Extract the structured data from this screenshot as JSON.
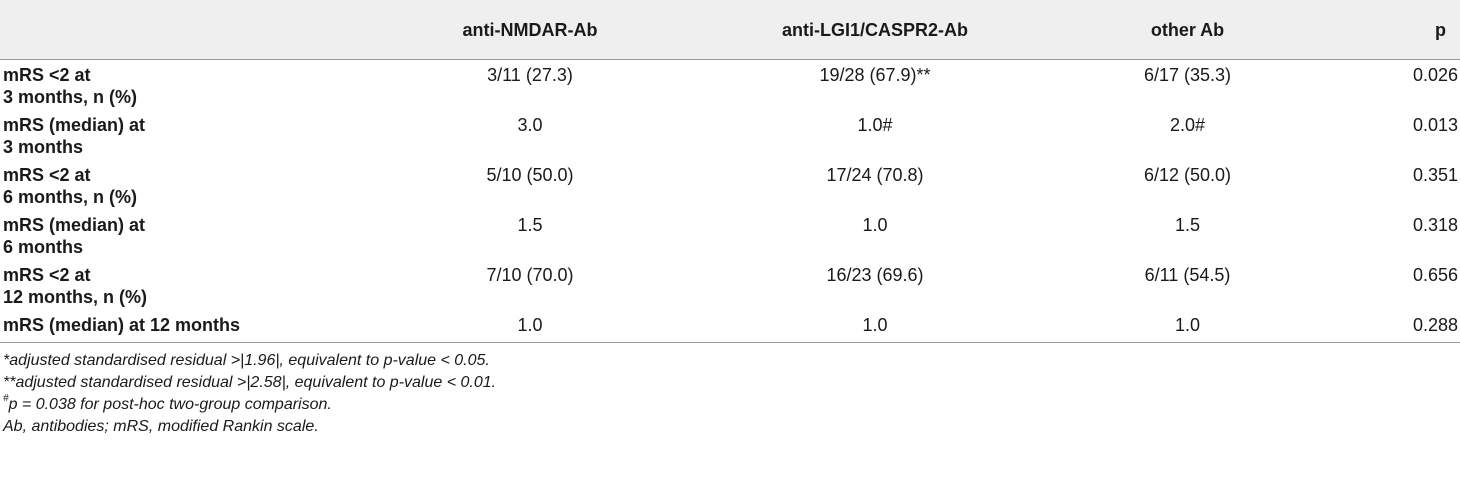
{
  "table": {
    "headers": [
      "",
      "anti-NMDAR-Ab",
      "anti-LGI1/CASPR2-Ab",
      "other Ab",
      "p"
    ],
    "rows": [
      {
        "label_line1": "mRS <2 at",
        "label_line2": "3 months, n (%)",
        "nmdar": "3/11 (27.3)",
        "lgi1": "19/28 (67.9)**",
        "other": "6/17 (35.3)",
        "p": "0.026"
      },
      {
        "label_line1": "mRS (median) at",
        "label_line2": "3 months",
        "nmdar": "3.0",
        "lgi1": "1.0#",
        "other": "2.0#",
        "p": "0.013"
      },
      {
        "label_line1": "mRS <2 at",
        "label_line2": "6 months, n (%)",
        "nmdar": "5/10 (50.0)",
        "lgi1": "17/24 (70.8)",
        "other": "6/12 (50.0)",
        "p": "0.351"
      },
      {
        "label_line1": "mRS (median) at",
        "label_line2": "6 months",
        "nmdar": "1.5",
        "lgi1": "1.0",
        "other": "1.5",
        "p": "0.318"
      },
      {
        "label_line1": "mRS <2 at",
        "label_line2": "12 months, n (%)",
        "nmdar": "7/10 (70.0)",
        "lgi1": "16/23 (69.6)",
        "other": "6/11 (54.5)",
        "p": "0.656"
      },
      {
        "label_line1": "mRS (median) at 12 months",
        "label_line2": "",
        "nmdar": "1.0",
        "lgi1": "1.0",
        "other": "1.0",
        "p": "0.288"
      }
    ]
  },
  "footnotes": {
    "note1": "*adjusted standardised residual >|1.96|, equivalent to p-value < 0.05.",
    "note2": "**adjusted standardised residual >|2.58|, equivalent to p-value < 0.01.",
    "note3_mark": "#",
    "note3_text": "p = 0.038 for post-hoc two-group comparison.",
    "note4": "Ab, antibodies; mRS, modified Rankin scale."
  }
}
